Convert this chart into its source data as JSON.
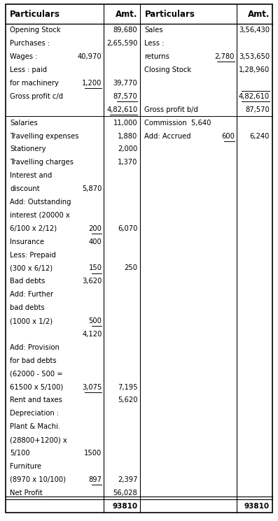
{
  "headers": [
    "Particulars",
    "Amt.",
    "Particulars",
    "Amt."
  ],
  "left_rows": [
    {
      "text": "Opening Stock",
      "sub": "",
      "amt": "89,680",
      "ul_sub": false,
      "ul_amt": false
    },
    {
      "text": "Purchases :",
      "sub": "",
      "amt": "2,65,590",
      "ul_sub": false,
      "ul_amt": false
    },
    {
      "text": "Wages :",
      "sub": "40,970",
      "amt": "",
      "ul_sub": false,
      "ul_amt": false
    },
    {
      "text": "Less : paid",
      "sub": "",
      "amt": "",
      "ul_sub": false,
      "ul_amt": false
    },
    {
      "text": "for machinery",
      "sub": "1,200",
      "amt": "39,770",
      "ul_sub": true,
      "ul_amt": false
    },
    {
      "text": "Gross profit c/d",
      "sub": "",
      "amt": "87,570",
      "ul_sub": false,
      "ul_amt": true
    },
    {
      "text": "",
      "sub": "",
      "amt": "4,82,610",
      "ul_sub": false,
      "ul_amt": true
    },
    {
      "text": "Salaries",
      "sub": "",
      "amt": "11,000",
      "ul_sub": false,
      "ul_amt": false
    },
    {
      "text": "Travelling expenses",
      "sub": "",
      "amt": "1,880",
      "ul_sub": false,
      "ul_amt": false
    },
    {
      "text": "Stationery",
      "sub": "",
      "amt": "2,000",
      "ul_sub": false,
      "ul_amt": false
    },
    {
      "text": "Travelling charges",
      "sub": "",
      "amt": "1,370",
      "ul_sub": false,
      "ul_amt": false
    },
    {
      "text": "Interest and",
      "sub": "",
      "amt": "",
      "ul_sub": false,
      "ul_amt": false
    },
    {
      "text": "discount",
      "sub": "5,870",
      "amt": "",
      "ul_sub": false,
      "ul_amt": false
    },
    {
      "text": "Add: Outstanding",
      "sub": "",
      "amt": "",
      "ul_sub": false,
      "ul_amt": false
    },
    {
      "text": "interest (20000 x",
      "sub": "",
      "amt": "",
      "ul_sub": false,
      "ul_amt": false
    },
    {
      "text": "6/100 x 2/12)",
      "sub": "200",
      "amt": "6,070",
      "ul_sub": true,
      "ul_amt": false
    },
    {
      "text": "Insurance",
      "sub": "400",
      "amt": "",
      "ul_sub": false,
      "ul_amt": false
    },
    {
      "text": "Less: Prepaid",
      "sub": "",
      "amt": "",
      "ul_sub": false,
      "ul_amt": false
    },
    {
      "text": "(300 x 6/12)",
      "sub": "150",
      "amt": "250",
      "ul_sub": true,
      "ul_amt": false
    },
    {
      "text": "Bad debts",
      "sub": "3,620",
      "amt": "",
      "ul_sub": false,
      "ul_amt": false
    },
    {
      "text": "Add: Further",
      "sub": "",
      "amt": "",
      "ul_sub": false,
      "ul_amt": false
    },
    {
      "text": "bad debts",
      "sub": "",
      "amt": "",
      "ul_sub": false,
      "ul_amt": false
    },
    {
      "text": "(1000 x 1/2)",
      "sub": "500",
      "amt": "",
      "ul_sub": true,
      "ul_amt": false
    },
    {
      "text": "",
      "sub": "4,120",
      "amt": "",
      "ul_sub": false,
      "ul_amt": false
    },
    {
      "text": "Add: Provision",
      "sub": "",
      "amt": "",
      "ul_sub": false,
      "ul_amt": false
    },
    {
      "text": "for bad debts",
      "sub": "",
      "amt": "",
      "ul_sub": false,
      "ul_amt": false
    },
    {
      "text": "(62000 - 500 =",
      "sub": "",
      "amt": "",
      "ul_sub": false,
      "ul_amt": false
    },
    {
      "text": "61500 x 5/100)",
      "sub": "3,075",
      "amt": "7,195",
      "ul_sub": true,
      "ul_amt": false
    },
    {
      "text": "Rent and taxes",
      "sub": "",
      "amt": "5,620",
      "ul_sub": false,
      "ul_amt": false
    },
    {
      "text": "Depreciation :",
      "sub": "",
      "amt": "",
      "ul_sub": false,
      "ul_amt": false
    },
    {
      "text": "Plant & Machi.",
      "sub": "",
      "amt": "",
      "ul_sub": false,
      "ul_amt": false
    },
    {
      "text": "(28800+1200) x",
      "sub": "",
      "amt": "",
      "ul_sub": false,
      "ul_amt": false
    },
    {
      "text": "5/100",
      "sub": "1500",
      "amt": "",
      "ul_sub": false,
      "ul_amt": false
    },
    {
      "text": "Furniture",
      "sub": "",
      "amt": "",
      "ul_sub": false,
      "ul_amt": false
    },
    {
      "text": "(8970 x 10/100)",
      "sub": "897",
      "amt": "2,397",
      "ul_sub": true,
      "ul_amt": false
    },
    {
      "text": "Net Profit",
      "sub": "",
      "amt": "56,028",
      "ul_sub": false,
      "ul_amt": false
    },
    {
      "text": "",
      "sub": "",
      "amt": "93810",
      "ul_sub": false,
      "ul_amt": false,
      "bold": true
    }
  ],
  "right_rows": [
    {
      "text": "Sales",
      "sub": "",
      "amt": "3,56,430",
      "ul_sub": false,
      "ul_amt": false
    },
    {
      "text": "Less :",
      "sub": "",
      "amt": "",
      "ul_sub": false,
      "ul_amt": false
    },
    {
      "text": "returns",
      "sub": "2,780",
      "amt": "3,53,650",
      "ul_sub": true,
      "ul_amt": false
    },
    {
      "text": "Closing Stock",
      "sub": "",
      "amt": "1,28,960",
      "ul_sub": false,
      "ul_amt": false
    },
    {
      "text": "",
      "sub": "",
      "amt": "",
      "ul_sub": false,
      "ul_amt": false
    },
    {
      "text": "",
      "sub": "",
      "amt": "4,82,610",
      "ul_sub": false,
      "ul_amt": true
    },
    {
      "text": "Gross profit b/d",
      "sub": "",
      "amt": "87,570",
      "ul_sub": false,
      "ul_amt": false
    },
    {
      "text": "Commission  5,640",
      "sub": "",
      "amt": "",
      "ul_sub": false,
      "ul_amt": false
    },
    {
      "text": "Add: Accrued",
      "sub": "600",
      "amt": "6,240",
      "ul_sub": true,
      "ul_amt": false
    },
    {
      "text": "",
      "sub": "",
      "amt": "",
      "ul_sub": false,
      "ul_amt": false
    },
    {
      "text": "",
      "sub": "",
      "amt": "",
      "ul_sub": false,
      "ul_amt": false
    },
    {
      "text": "",
      "sub": "",
      "amt": "",
      "ul_sub": false,
      "ul_amt": false
    },
    {
      "text": "",
      "sub": "",
      "amt": "",
      "ul_sub": false,
      "ul_amt": false
    },
    {
      "text": "",
      "sub": "",
      "amt": "",
      "ul_sub": false,
      "ul_amt": false
    },
    {
      "text": "",
      "sub": "",
      "amt": "",
      "ul_sub": false,
      "ul_amt": false
    },
    {
      "text": "",
      "sub": "",
      "amt": "",
      "ul_sub": false,
      "ul_amt": false
    },
    {
      "text": "",
      "sub": "",
      "amt": "",
      "ul_sub": false,
      "ul_amt": false
    },
    {
      "text": "",
      "sub": "",
      "amt": "",
      "ul_sub": false,
      "ul_amt": false
    },
    {
      "text": "",
      "sub": "",
      "amt": "",
      "ul_sub": false,
      "ul_amt": false
    },
    {
      "text": "",
      "sub": "",
      "amt": "",
      "ul_sub": false,
      "ul_amt": false
    },
    {
      "text": "",
      "sub": "",
      "amt": "",
      "ul_sub": false,
      "ul_amt": false
    },
    {
      "text": "",
      "sub": "",
      "amt": "",
      "ul_sub": false,
      "ul_amt": false
    },
    {
      "text": "",
      "sub": "",
      "amt": "",
      "ul_sub": false,
      "ul_amt": false
    },
    {
      "text": "",
      "sub": "",
      "amt": "",
      "ul_sub": false,
      "ul_amt": false
    },
    {
      "text": "",
      "sub": "",
      "amt": "",
      "ul_sub": false,
      "ul_amt": false
    },
    {
      "text": "",
      "sub": "",
      "amt": "",
      "ul_sub": false,
      "ul_amt": false
    },
    {
      "text": "",
      "sub": "",
      "amt": "",
      "ul_sub": false,
      "ul_amt": false
    },
    {
      "text": "",
      "sub": "",
      "amt": "",
      "ul_sub": false,
      "ul_amt": false
    },
    {
      "text": "",
      "sub": "",
      "amt": "",
      "ul_sub": false,
      "ul_amt": false
    },
    {
      "text": "",
      "sub": "",
      "amt": "",
      "ul_sub": false,
      "ul_amt": false
    },
    {
      "text": "",
      "sub": "",
      "amt": "",
      "ul_sub": false,
      "ul_amt": false
    },
    {
      "text": "",
      "sub": "",
      "amt": "",
      "ul_sub": false,
      "ul_amt": false
    },
    {
      "text": "",
      "sub": "",
      "amt": "",
      "ul_sub": false,
      "ul_amt": false
    },
    {
      "text": "",
      "sub": "",
      "amt": "",
      "ul_sub": false,
      "ul_amt": false
    },
    {
      "text": "",
      "sub": "",
      "amt": "",
      "ul_sub": false,
      "ul_amt": false
    },
    {
      "text": "",
      "sub": "",
      "amt": "",
      "ul_sub": false,
      "ul_amt": false
    },
    {
      "text": "",
      "sub": "",
      "amt": "93810",
      "ul_sub": false,
      "ul_amt": false,
      "bold": true
    }
  ],
  "trading_section_rows": 7,
  "bg_color": "#ffffff",
  "border_color": "#000000",
  "font_size": 7.2,
  "header_font_size": 8.5
}
